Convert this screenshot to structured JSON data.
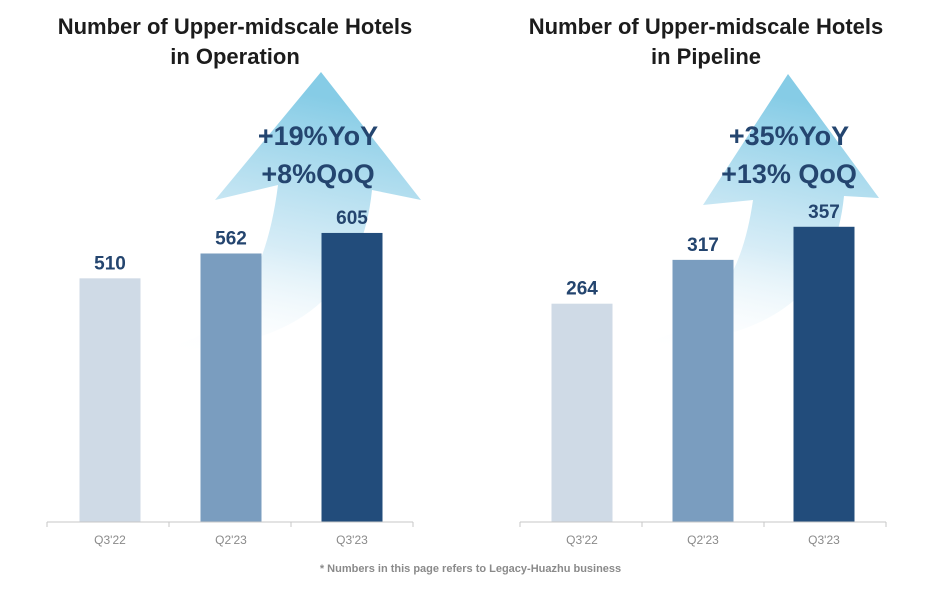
{
  "chart_data": [
    {
      "type": "bar",
      "title": [
        "Number of Upper-midscale Hotels",
        "in Operation"
      ],
      "categories": [
        "Q3'22",
        "Q2'23",
        "Q3'23"
      ],
      "values": [
        510,
        562,
        605
      ],
      "colors": [
        "#cfdae6",
        "#7a9dbf",
        "#224c7b"
      ],
      "annotations": [
        "+19%YoY",
        "+8%QoQ"
      ],
      "ylim": [
        0,
        900
      ],
      "grid": false
    },
    {
      "type": "bar",
      "title": [
        "Number of Upper-midscale Hotels",
        "in Pipeline"
      ],
      "categories": [
        "Q3'22",
        "Q2'23",
        "Q3'23"
      ],
      "values": [
        264,
        317,
        357
      ],
      "colors": [
        "#cfdae6",
        "#7a9dbf",
        "#224c7b"
      ],
      "annotations": [
        "+35%YoY",
        "+13% QoQ"
      ],
      "ylim": [
        0,
        520
      ],
      "grid": false
    }
  ],
  "footnote": "* Numbers in this page refers to Legacy-Huazhu business"
}
